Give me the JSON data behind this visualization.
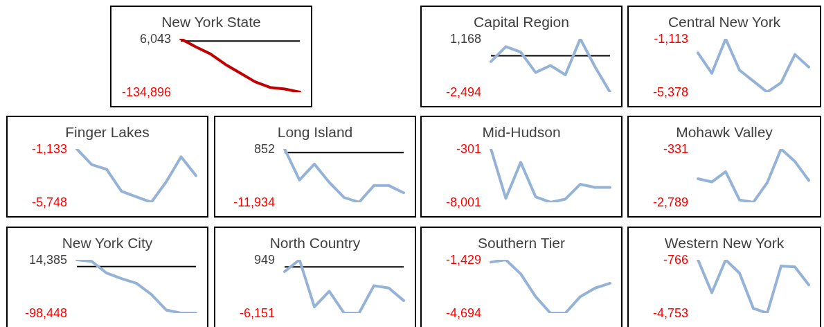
{
  "chart_data": [
    {
      "type": "line",
      "title": "New York State",
      "categories": [
        null,
        null,
        null,
        null,
        null,
        null,
        null,
        null,
        null
      ],
      "series": [
        {
          "color": "#c00000",
          "values": [
            6043,
            -15000,
            -34000,
            -61500,
            -84600,
            -107700,
            -122500,
            -126700,
            -134896
          ]
        }
      ],
      "ylim": [
        -134896,
        6043
      ],
      "yticks": [
        {
          "value": -134896,
          "label": "-134,896"
        },
        {
          "value": 6043,
          "label": "6,043"
        }
      ],
      "tick_labels": "y",
      "marker": "none",
      "ref_lines": [
        {
          "axis": "y",
          "value": 0,
          "color": "#000000"
        }
      ]
    },
    {
      "type": "line",
      "title": "Capital Region",
      "categories": [
        null,
        null,
        null,
        null,
        null,
        null,
        null,
        null,
        null
      ],
      "series": [
        {
          "color": "#95b3d7",
          "values": [
            -394,
            630,
            253,
            -1147,
            -662,
            -1308,
            1168,
            -770,
            -2494
          ]
        }
      ],
      "ylim": [
        -2494,
        1168
      ],
      "yticks": [
        {
          "value": -2494,
          "label": "-2,494"
        },
        {
          "value": 1168,
          "label": "1,168"
        }
      ],
      "tick_labels": "y",
      "marker": "none",
      "ref_lines": [
        {
          "axis": "y",
          "value": 0,
          "color": "#000000"
        }
      ]
    },
    {
      "type": "line",
      "title": "Central New York",
      "categories": [
        null,
        null,
        null,
        null,
        null,
        null,
        null,
        null,
        null
      ],
      "series": [
        {
          "color": "#95b3d7",
          "values": [
            -2242,
            -3872,
            -1113,
            -3622,
            -4499,
            -5378,
            -4625,
            -2367,
            -3370
          ]
        }
      ],
      "ylim": [
        -5378,
        -1113
      ],
      "yticks": [
        {
          "value": -5378,
          "label": "-5,378"
        },
        {
          "value": -1113,
          "label": "-1,113"
        }
      ],
      "tick_labels": "y",
      "marker": "none"
    },
    {
      "type": "line",
      "title": "Finger Lakes",
      "categories": [
        null,
        null,
        null,
        null,
        null,
        null,
        null,
        null,
        null
      ],
      "series": [
        {
          "color": "#95b3d7",
          "values": [
            -1133,
            -2491,
            -2898,
            -4799,
            -5274,
            -5748,
            -3983,
            -1812,
            -3442
          ]
        }
      ],
      "ylim": [
        -5748,
        -1133
      ],
      "yticks": [
        {
          "value": -5748,
          "label": "-5,748"
        },
        {
          "value": -1133,
          "label": "-1,133"
        }
      ],
      "tick_labels": "y",
      "marker": "none"
    },
    {
      "type": "line",
      "title": "Long Island",
      "categories": [
        null,
        null,
        null,
        null,
        null,
        null,
        null,
        null,
        null
      ],
      "series": [
        {
          "color": "#95b3d7",
          "values": [
            852,
            -6589,
            -2773,
            -7161,
            -10786,
            -11934,
            -7927,
            -7927,
            -9644
          ]
        }
      ],
      "ylim": [
        -11934,
        852
      ],
      "yticks": [
        {
          "value": -11934,
          "label": "-11,934"
        },
        {
          "value": 852,
          "label": "852"
        }
      ],
      "tick_labels": "y",
      "marker": "none",
      "ref_lines": [
        {
          "axis": "y",
          "value": 0,
          "color": "#000000"
        }
      ]
    },
    {
      "type": "line",
      "title": "Mid-Hudson",
      "categories": [
        null,
        null,
        null,
        null,
        null,
        null,
        null,
        null,
        null
      ],
      "series": [
        {
          "color": "#95b3d7",
          "values": [
            -301,
            -7433,
            -2226,
            -7207,
            -8001,
            -7547,
            -5396,
            -5849,
            -5849
          ]
        }
      ],
      "ylim": [
        -8001,
        -301
      ],
      "yticks": [
        {
          "value": -8001,
          "label": "-8,001"
        },
        {
          "value": -301,
          "label": "-301"
        }
      ],
      "tick_labels": "y",
      "marker": "none"
    },
    {
      "type": "line",
      "title": "Mohawk Valley",
      "categories": [
        null,
        null,
        null,
        null,
        null,
        null,
        null,
        null,
        null
      ],
      "series": [
        {
          "color": "#95b3d7",
          "values": [
            -1705,
            -1849,
            -1379,
            -2681,
            -2789,
            -1885,
            -331,
            -909,
            -1777
          ]
        }
      ],
      "ylim": [
        -2789,
        -331
      ],
      "yticks": [
        {
          "value": -2789,
          "label": "-2,789"
        },
        {
          "value": -331,
          "label": "-331"
        }
      ],
      "tick_labels": "y",
      "marker": "none"
    },
    {
      "type": "line",
      "title": "New York City",
      "categories": [
        null,
        null,
        null,
        null,
        null,
        null,
        null,
        null,
        null
      ],
      "series": [
        {
          "color": "#95b3d7",
          "values": [
            14385,
            11067,
            -13818,
            -25431,
            -35385,
            -58611,
            -91794,
            -98448,
            -98448
          ]
        }
      ],
      "ylim": [
        -98448,
        14385
      ],
      "yticks": [
        {
          "value": -98448,
          "label": "-98,448"
        },
        {
          "value": 14385,
          "label": "14,385"
        }
      ],
      "tick_labels": "y",
      "marker": "none",
      "ref_lines": [
        {
          "axis": "y",
          "value": 0,
          "color": "#000000"
        }
      ]
    },
    {
      "type": "line",
      "title": "North Country",
      "categories": [
        null,
        null,
        null,
        null,
        null,
        null,
        null,
        null,
        null
      ],
      "series": [
        {
          "color": "#95b3d7",
          "values": [
            -617,
            949,
            -5315,
            -3227,
            -6151,
            -6151,
            -2496,
            -2809,
            -4480
          ]
        }
      ],
      "ylim": [
        -6151,
        949
      ],
      "yticks": [
        {
          "value": -6151,
          "label": "-6,151"
        },
        {
          "value": 949,
          "label": "949"
        }
      ],
      "tick_labels": "y",
      "marker": "none",
      "ref_lines": [
        {
          "axis": "y",
          "value": 0,
          "color": "#000000"
        }
      ]
    },
    {
      "type": "line",
      "title": "Southern Tier",
      "categories": [
        null,
        null,
        null,
        null,
        null,
        null,
        null,
        null,
        null
      ],
      "series": [
        {
          "color": "#95b3d7",
          "values": [
            -1573,
            -1429,
            -2293,
            -3685,
            -4694,
            -4694,
            -3685,
            -3157,
            -2869
          ]
        }
      ],
      "ylim": [
        -4694,
        -1429
      ],
      "yticks": [
        {
          "value": -4694,
          "label": "-4,694"
        },
        {
          "value": -1429,
          "label": "-1,429"
        }
      ],
      "tick_labels": "y",
      "marker": "none"
    },
    {
      "type": "line",
      "title": "Western New York",
      "categories": [
        null,
        null,
        null,
        null,
        null,
        null,
        null,
        null,
        null
      ],
      "series": [
        {
          "color": "#95b3d7",
          "values": [
            -766,
            -3228,
            -766,
            -1763,
            -4401,
            -4753,
            -1235,
            -1294,
            -2642
          ]
        }
      ],
      "ylim": [
        -4753,
        -766
      ],
      "yticks": [
        {
          "value": -4753,
          "label": "-4,753"
        },
        {
          "value": -766,
          "label": "-766"
        }
      ],
      "tick_labels": "y",
      "marker": "none"
    }
  ]
}
